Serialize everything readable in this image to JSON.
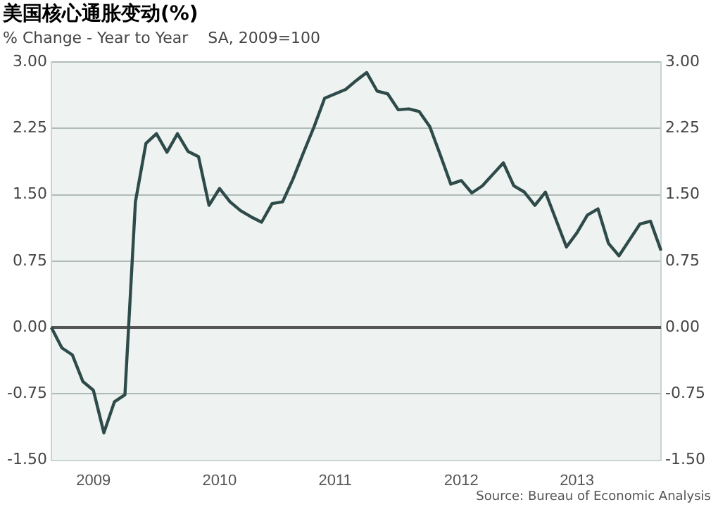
{
  "chart_data": {
    "type": "line",
    "title": "美国核心通胀变动(%)",
    "subtitle": "% Change - Year to Year    SA, 2009=100",
    "categories": [
      null,
      null,
      null,
      null,
      "2009",
      null,
      null,
      null,
      null,
      null,
      null,
      null,
      null,
      null,
      null,
      null,
      "2010",
      null,
      null,
      null,
      null,
      null,
      null,
      null,
      null,
      null,
      null,
      "2011",
      null,
      null,
      null,
      null,
      null,
      null,
      null,
      null,
      null,
      null,
      null,
      "2012",
      null,
      null,
      null,
      null,
      null,
      null,
      null,
      null,
      null,
      null,
      "2013",
      null,
      null,
      null,
      null,
      null,
      null,
      null,
      null
    ],
    "series": [
      {
        "color": "#2e4b49",
        "values": [
          0,
          -0.23,
          -0.31,
          -0.61,
          -0.71,
          -1.19,
          -0.84,
          -0.76,
          1.42,
          2.08,
          2.19,
          1.98,
          2.19,
          1.99,
          1.93,
          1.38,
          1.57,
          1.42,
          1.32,
          1.25,
          1.19,
          1.4,
          1.42,
          1.68,
          1.98,
          2.27,
          2.59,
          2.64,
          2.69,
          2.79,
          2.88,
          2.67,
          2.64,
          2.46,
          2.47,
          2.44,
          2.27,
          1.95,
          1.62,
          1.66,
          1.52,
          1.6,
          1.73,
          1.86,
          1.6,
          1.53,
          1.38,
          1.53,
          1.22,
          0.91,
          1.07,
          1.27,
          1.34,
          0.95,
          0.81,
          0.99,
          1.17,
          1.2,
          0.87
        ]
      }
    ],
    "ylim": [
      -1.5,
      3
    ],
    "yticks": [
      {
        "value": -1.5,
        "label": "-1.50"
      },
      {
        "value": -0.75,
        "label": "-0.75"
      },
      {
        "value": 0,
        "label": "0.00"
      },
      {
        "value": 0.75,
        "label": "0.75"
      },
      {
        "value": 1.5,
        "label": "1.50"
      },
      {
        "value": 2.25,
        "label": "2.25"
      },
      {
        "value": 3,
        "label": "3.00"
      }
    ],
    "y2lim": [
      -1.5,
      3
    ],
    "y2ticks": [
      {
        "value": -1.5,
        "label": "-1.50"
      },
      {
        "value": -0.75,
        "label": "-0.75"
      },
      {
        "value": 0,
        "label": "0.00"
      },
      {
        "value": 0.75,
        "label": "0.75"
      },
      {
        "value": 1.5,
        "label": "1.50"
      },
      {
        "value": 2.25,
        "label": "2.25"
      },
      {
        "value": 3,
        "label": "3.00"
      }
    ],
    "ref_lines": [
      {
        "axis": "y",
        "value": 0,
        "color": "#555555"
      }
    ],
    "grid": "y",
    "legend": false,
    "marker": "none",
    "line_style": "solid",
    "annotations": [
      "Source: Bureau of Economic Analysis"
    ]
  }
}
